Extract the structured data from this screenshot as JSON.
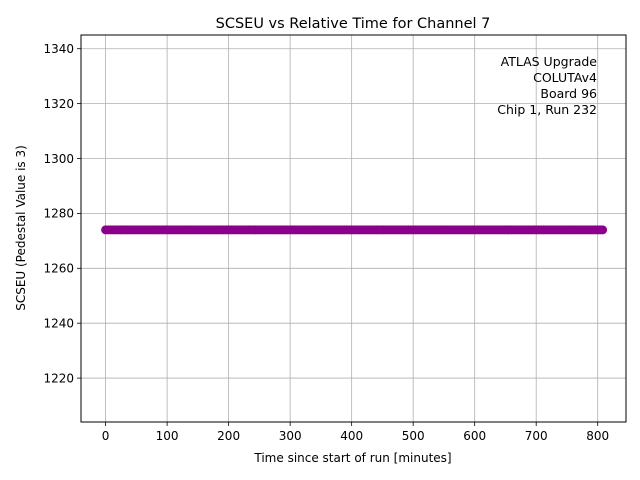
{
  "chart_data": {
    "type": "scatter",
    "title": "SCSEU vs Relative Time for Channel 7",
    "xlabel": "Time since start of run [minutes]",
    "ylabel": "SCSEU (Pedestal Value is 3)",
    "xlim": [
      -40,
      846
    ],
    "ylim": [
      1204,
      1345
    ],
    "xticks": [
      0,
      100,
      200,
      300,
      400,
      500,
      600,
      700,
      800
    ],
    "yticks": [
      1220,
      1240,
      1260,
      1280,
      1300,
      1320,
      1340
    ],
    "grid": true,
    "annotation_lines": [
      "ATLAS Upgrade",
      "COLUTAv4",
      "Board 96",
      "Chip 1, Run 232"
    ],
    "annotation_position": "top-right",
    "series": [
      {
        "marker_color": "#8b008b",
        "y_constant": 1274,
        "x_start": 0,
        "x_end": 808,
        "x_step": 4
      }
    ]
  }
}
